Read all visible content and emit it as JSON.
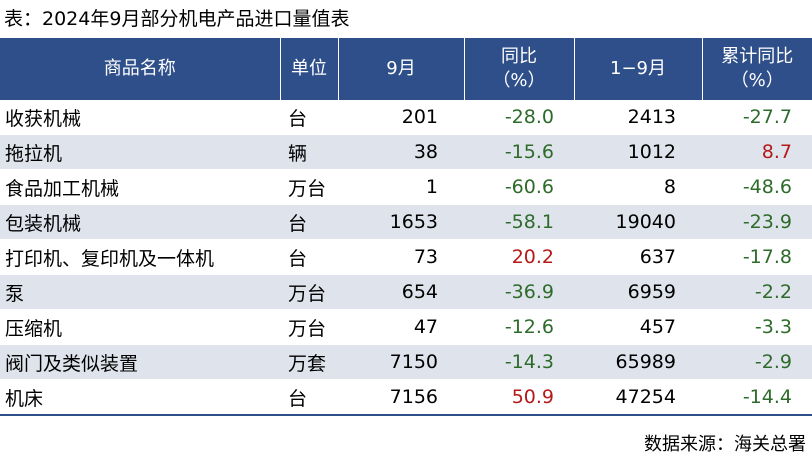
{
  "title": "表：2024年9月部分机电产品进口量值表",
  "header": {
    "product": "商品名称",
    "unit": "单位",
    "sep": "9月",
    "yoy_line1": "同比",
    "yoy_line2": "（%）",
    "cum": "1−9月",
    "cum_yoy_line1": "累计同比",
    "cum_yoy_line2": "（%）"
  },
  "rows": [
    {
      "name": "收获机械",
      "unit": "台",
      "sep": "201",
      "yoy": "-28.0",
      "cum": "2413",
      "cum_yoy": "-27.7"
    },
    {
      "name": "拖拉机",
      "unit": "辆",
      "sep": "38",
      "yoy": "-15.6",
      "cum": "1012",
      "cum_yoy": "8.7"
    },
    {
      "name": "食品加工机械",
      "unit": "万台",
      "sep": "1",
      "yoy": "-60.6",
      "cum": "8",
      "cum_yoy": "-48.6"
    },
    {
      "name": "包装机械",
      "unit": "台",
      "sep": "1653",
      "yoy": "-58.1",
      "cum": "19040",
      "cum_yoy": "-23.9"
    },
    {
      "name": "打印机、复印机及一体机",
      "unit": "台",
      "sep": "73",
      "yoy": "20.2",
      "cum": "637",
      "cum_yoy": "-17.8"
    },
    {
      "name": "泵",
      "unit": "万台",
      "sep": "654",
      "yoy": "-36.9",
      "cum": "6959",
      "cum_yoy": "-2.2"
    },
    {
      "name": "压缩机",
      "unit": "万台",
      "sep": "47",
      "yoy": "-12.6",
      "cum": "457",
      "cum_yoy": "-3.3"
    },
    {
      "name": "阀门及类似装置",
      "unit": "万套",
      "sep": "7150",
      "yoy": "-14.3",
      "cum": "65989",
      "cum_yoy": "-2.9"
    },
    {
      "name": "机床",
      "unit": "台",
      "sep": "7156",
      "yoy": "50.9",
      "cum": "47254",
      "cum_yoy": "-14.4"
    }
  ],
  "source": "数据来源：海关总署",
  "colors": {
    "header_bg": "#2e4f8a",
    "stripe": "#dfe4ec",
    "negative": "#2e6b2a",
    "positive": "#b41a1a"
  }
}
